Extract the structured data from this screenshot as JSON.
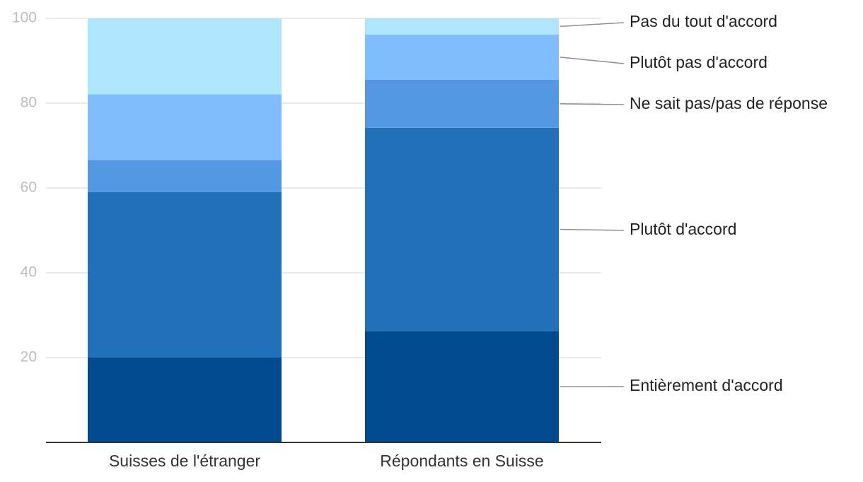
{
  "chart_data": {
    "type": "bar",
    "stacked": true,
    "categories": [
      "Suisses de l'étranger",
      "Répondants en Suisse"
    ],
    "series": [
      {
        "name": "Entièrement d'accord",
        "color": "#004b8f",
        "values": [
          20,
          26.3
        ]
      },
      {
        "name": "Plutôt d'accord",
        "color": "#2171ba",
        "values": [
          39,
          47.9
        ]
      },
      {
        "name": "Ne sait pas/pas de réponse",
        "color": "#5497e2",
        "values": [
          7.6,
          11.3
        ]
      },
      {
        "name": "Plutôt pas d'accord",
        "color": "#80bdfe",
        "values": [
          15.5,
          10.7
        ]
      },
      {
        "name": "Pas du tout d'accord",
        "color": "#ade6fd",
        "values": [
          17.9,
          3.8
        ]
      }
    ],
    "yticks": [
      20,
      40,
      60,
      80,
      100
    ],
    "ylim": [
      0,
      100
    ],
    "title": "",
    "xlabel": "",
    "ylabel": "",
    "grid": true,
    "legend": "right-labels"
  }
}
